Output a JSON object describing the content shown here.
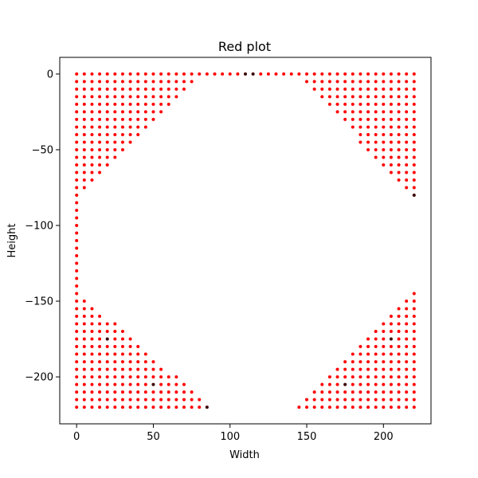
{
  "chart_data": {
    "type": "scatter",
    "title": "Red plot",
    "xlabel": "Width",
    "ylabel": "Height",
    "xlim": [
      -11,
      231
    ],
    "ylim": [
      -231,
      11
    ],
    "xticks": [
      0,
      50,
      100,
      150,
      200
    ],
    "yticks": [
      0,
      -50,
      -100,
      -150,
      -200
    ],
    "xtick_labels": [
      "0",
      "50",
      "100",
      "150",
      "200"
    ],
    "ytick_labels": [
      "0",
      "−50",
      "−100",
      "−150",
      "−200"
    ],
    "grid": false,
    "point_color": "#ff0000",
    "highlight_color": "#3b0000",
    "grid_step": 5,
    "regions": {
      "top_left": {
        "x_from": 0,
        "x_to": 80,
        "y_from": 0,
        "y_to": -80,
        "edge": "anti_diagonal"
      },
      "top_right": {
        "x_from": 145,
        "x_to": 220,
        "y_from": 0,
        "y_to": -80,
        "edge": "diagonal"
      },
      "bottom_left": {
        "x_from": 0,
        "x_to": 85,
        "y_from": -145,
        "y_to": -220,
        "edge": "diagonal"
      },
      "bottom_right": {
        "x_from": 145,
        "x_to": 220,
        "y_from": -145,
        "y_to": -220,
        "edge": "anti_diagonal"
      },
      "top_edge": {
        "x_from": 80,
        "x_to": 145,
        "y": 0
      },
      "left_edge": {
        "x": 0,
        "y_from": -80,
        "y_to": -145
      }
    },
    "highlight_points": [
      {
        "x": 80,
        "y": -5
      },
      {
        "x": 110,
        "y": 0
      },
      {
        "x": 115,
        "y": 0
      },
      {
        "x": 145,
        "y": -5
      },
      {
        "x": 5,
        "y": -80
      },
      {
        "x": 220,
        "y": -80
      },
      {
        "x": 20,
        "y": -175
      },
      {
        "x": 205,
        "y": -175
      },
      {
        "x": 50,
        "y": -205
      },
      {
        "x": 175,
        "y": -205
      },
      {
        "x": 85,
        "y": -220
      }
    ]
  }
}
